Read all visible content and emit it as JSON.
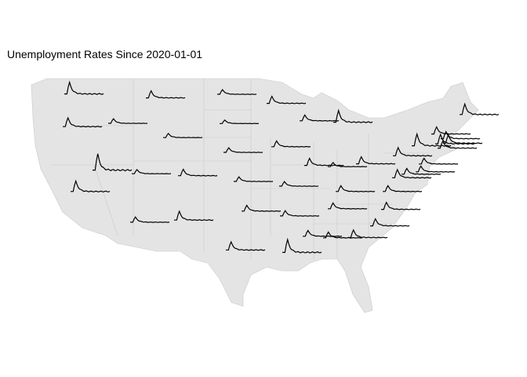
{
  "title": "Unemployment Rates Since 2020-01-01",
  "colors": {
    "land": "#e4e4e4",
    "borders": "#c9c9c9",
    "line": "#000000"
  },
  "chart_data": {
    "type": "line",
    "title": "Unemployment Rates Since 2020-01-01",
    "description_of_marks": "one small unemployment-rate sparkline per state, on a US map",
    "peaks": [
      20,
      15,
      8,
      12,
      7,
      8,
      6,
      8,
      12,
      18,
      28,
      7,
      11,
      8,
      10,
      10,
      20,
      12,
      7,
      12,
      9,
      15,
      10,
      8,
      10,
      10,
      9,
      14,
      22,
      10,
      10,
      13,
      12,
      12,
      10,
      14,
      14,
      20,
      10,
      10,
      10,
      18,
      12,
      16,
      14,
      12,
      12
    ]
  }
}
